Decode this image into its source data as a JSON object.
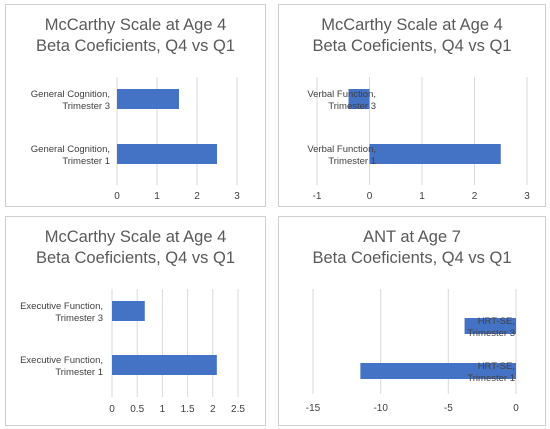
{
  "chart_data": [
    {
      "type": "bar",
      "orientation": "horizontal",
      "title": [
        "McCarthy Scale at Age 4",
        "Beta Coeficients, Q4 vs Q1"
      ],
      "categories": [
        "General Cognition, Trimester 3",
        "General Cognition, Trimester 1"
      ],
      "values": [
        1.55,
        2.5
      ],
      "xlim": [
        0,
        3
      ],
      "xticks": [
        0,
        1,
        2,
        3
      ],
      "grid": true,
      "bar_color": "#4472C4"
    },
    {
      "type": "bar",
      "orientation": "horizontal",
      "title": [
        "McCarthy Scale at Age 4",
        "Beta Coeficients, Q4 vs Q1"
      ],
      "categories": [
        "Verbal Function, Trimester 3",
        "Verbal Function, Trimester 1"
      ],
      "values": [
        -0.4,
        2.5
      ],
      "xlim": [
        -1,
        3
      ],
      "xticks": [
        -1,
        0,
        1,
        2,
        3
      ],
      "grid": true,
      "bar_color": "#4472C4"
    },
    {
      "type": "bar",
      "orientation": "horizontal",
      "title": [
        "McCarthy Scale at Age 4",
        "Beta Coeficients, Q4 vs Q1"
      ],
      "categories": [
        "Executive Function, Trimester 3",
        "Executive Function, Trimester 1"
      ],
      "values": [
        0.65,
        2.08
      ],
      "xlim": [
        0,
        2.5
      ],
      "xticks": [
        0,
        0.5,
        1,
        1.5,
        2,
        2.5
      ],
      "grid": true,
      "bar_color": "#4472C4"
    },
    {
      "type": "bar",
      "orientation": "horizontal",
      "title": [
        "ANT at Age 7",
        "Beta Coeficients, Q4 vs Q1"
      ],
      "categories": [
        "HRT-SE , Trimester 3",
        "HRT-SE , Trimester 1"
      ],
      "values": [
        -3.8,
        -11.5
      ],
      "xlim": [
        -15,
        0
      ],
      "xticks": [
        -15,
        -10,
        -5,
        0
      ],
      "grid": true,
      "bar_color": "#4472C4"
    }
  ]
}
